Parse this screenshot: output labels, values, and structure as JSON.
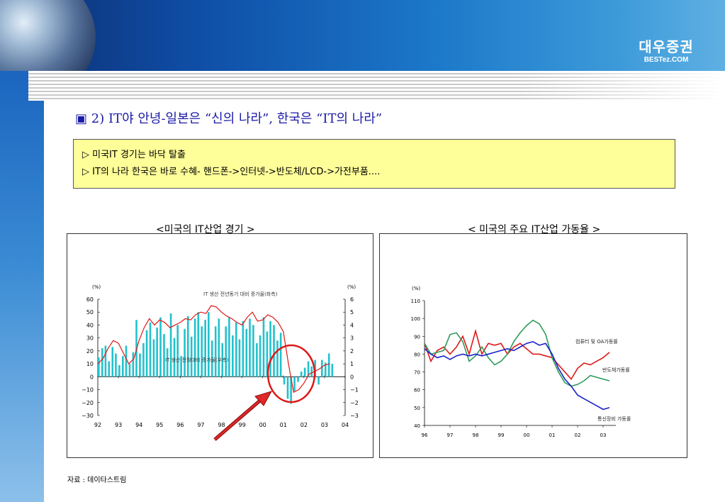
{
  "logo": {
    "korean": "대우증권",
    "english": "BESTez.COM"
  },
  "headline": {
    "marker": "▣",
    "text": "2) IT야 안녕-일본은 “신의 나라”, 한국은 “IT의 나라”"
  },
  "notes": [
    "▷ 미국IT 경기는 바닥 탈출",
    "▷ IT의 나라 한국은 바로 수혜- 핸드폰->인터넷->반도체/LCD->가전부품...."
  ],
  "source": "자료 : 데이타스트림",
  "colors": {
    "bar": "#22c1cc",
    "red": "#e01818",
    "green": "#2e9a5a",
    "blue": "#1a22c8",
    "title": "#1a1aa6",
    "note_bg": "#ffff99"
  },
  "chart_data": [
    {
      "type": "bar",
      "title": "<미국의 IT산업 경기 >",
      "left_unit": "(%)",
      "right_unit": "(%)",
      "ylim_left": [
        -30,
        60
      ],
      "ylim_right": [
        -3,
        6
      ],
      "yticks_left": [
        -30,
        -20,
        -10,
        0,
        10,
        20,
        30,
        40,
        50,
        60
      ],
      "yticks_right": [
        -3,
        -2,
        -1,
        0,
        1,
        2,
        3,
        4,
        5,
        6
      ],
      "x_tick_labels": [
        "92",
        "93",
        "94",
        "95",
        "96",
        "97",
        "98",
        "99",
        "00",
        "01",
        "02",
        "03",
        "04"
      ],
      "annotations": [
        "IT 생산 전년동기 대비 증가율(좌측)",
        "IT 생산 전월대비 증가율(우측)"
      ],
      "series": [
        {
          "kind": "line",
          "axis": "left",
          "x": [
            1992.0,
            1992.25,
            1992.5,
            1992.75,
            1993.0,
            1993.25,
            1993.5,
            1993.75,
            1994.0,
            1994.25,
            1994.5,
            1994.75,
            1995.0,
            1995.25,
            1995.5,
            1995.75,
            1996.0,
            1996.25,
            1996.5,
            1996.75,
            1997.0,
            1997.25,
            1997.5,
            1997.75,
            1998.0,
            1998.25,
            1998.5,
            1998.75,
            1999.0,
            1999.25,
            1999.5,
            1999.75,
            2000.0,
            2000.25,
            2000.5,
            2000.75,
            2001.0,
            2001.25,
            2001.5,
            2001.75,
            2002.0,
            2002.25,
            2002.5,
            2002.75,
            2003.0,
            2003.25
          ],
          "values": [
            10,
            14,
            22,
            28,
            26,
            18,
            10,
            14,
            28,
            38,
            45,
            40,
            44,
            42,
            38,
            40,
            42,
            45,
            44,
            48,
            50,
            49,
            55,
            54,
            50,
            47,
            45,
            42,
            40,
            46,
            50,
            43,
            44,
            48,
            46,
            42,
            35,
            10,
            -12,
            -10,
            -5,
            2,
            4,
            6,
            9,
            10
          ]
        },
        {
          "kind": "bar",
          "axis": "right",
          "x": [
            1992.0,
            1992.17,
            1992.33,
            1992.5,
            1992.67,
            1992.83,
            1993.0,
            1993.17,
            1993.33,
            1993.5,
            1993.67,
            1993.83,
            1994.0,
            1994.17,
            1994.33,
            1994.5,
            1994.67,
            1994.83,
            1995.0,
            1995.17,
            1995.33,
            1995.5,
            1995.67,
            1995.83,
            1996.0,
            1996.17,
            1996.33,
            1996.5,
            1996.67,
            1996.83,
            1997.0,
            1997.17,
            1997.33,
            1997.5,
            1997.67,
            1997.83,
            1998.0,
            1998.17,
            1998.33,
            1998.5,
            1998.67,
            1998.83,
            1999.0,
            1999.17,
            1999.33,
            1999.5,
            1999.67,
            1999.83,
            2000.0,
            2000.17,
            2000.33,
            2000.5,
            2000.67,
            2000.83,
            2001.0,
            2001.17,
            2001.33,
            2001.5,
            2001.67,
            2001.83,
            2002.0,
            2002.17,
            2002.33,
            2002.5,
            2002.67,
            2002.83,
            2003.0,
            2003.17,
            2003.33
          ],
          "values": [
            1.5,
            2.2,
            2.4,
            1.2,
            2.3,
            1.8,
            0.9,
            1.6,
            2.4,
            1.0,
            1.9,
            4.4,
            1.8,
            2.6,
            3.6,
            4.2,
            2.9,
            3.8,
            4.6,
            3.3,
            2.2,
            4.9,
            3.0,
            4.0,
            1.6,
            3.7,
            4.7,
            3.1,
            4.5,
            5.0,
            3.9,
            4.4,
            5.0,
            2.8,
            3.9,
            4.5,
            2.6,
            3.9,
            4.6,
            3.2,
            4.2,
            2.9,
            4.3,
            3.7,
            4.5,
            4.0,
            2.6,
            3.2,
            4.6,
            3.5,
            4.3,
            4.0,
            2.8,
            3.4,
            -0.6,
            -1.7,
            -2.1,
            -1.1,
            -0.4,
            0.4,
            0.7,
            1.2,
            0.8,
            1.3,
            -0.6,
            1.3,
            1.1,
            1.8,
            1.0
          ]
        }
      ]
    },
    {
      "type": "line",
      "title": "< 미국의 주요 IT산업 가동율 >",
      "y_unit": "(%)",
      "ylim": [
        40,
        110
      ],
      "yticks": [
        40,
        50,
        60,
        70,
        80,
        90,
        100,
        110
      ],
      "x_tick_labels": [
        "96",
        "97",
        "98",
        "99",
        "00",
        "01",
        "02",
        "03"
      ],
      "series": [
        {
          "name": "컴퓨터 및 OA가동률",
          "x": [
            1996.0,
            1996.25,
            1996.5,
            1996.75,
            1997.0,
            1997.25,
            1997.5,
            1997.75,
            1998.0,
            1998.25,
            1998.5,
            1998.75,
            1999.0,
            1999.25,
            1999.5,
            1999.75,
            2000.0,
            2000.25,
            2000.5,
            2000.75,
            2001.0,
            2001.25,
            2001.5,
            2001.75,
            2002.0,
            2002.25,
            2002.5,
            2002.75,
            2003.0,
            2003.25
          ],
          "values": [
            86,
            76,
            82,
            84,
            80,
            84,
            90,
            80,
            93,
            80,
            86,
            85,
            86,
            80,
            84,
            86,
            83,
            80,
            80,
            79,
            78,
            74,
            70,
            66,
            72,
            75,
            74,
            76,
            78,
            81
          ]
        },
        {
          "name": "반도체가동률",
          "x": [
            1996.0,
            1996.25,
            1996.5,
            1996.75,
            1997.0,
            1997.25,
            1997.5,
            1997.75,
            1998.0,
            1998.25,
            1998.5,
            1998.75,
            1999.0,
            1999.25,
            1999.5,
            1999.75,
            2000.0,
            2000.25,
            2000.5,
            2000.75,
            2001.0,
            2001.25,
            2001.5,
            2001.75,
            2002.0,
            2002.25,
            2002.5,
            2002.75,
            2003.0,
            2003.25
          ],
          "values": [
            86,
            80,
            81,
            82,
            91,
            92,
            87,
            76,
            79,
            84,
            78,
            74,
            76,
            80,
            87,
            92,
            96,
            99,
            97,
            91,
            78,
            70,
            64,
            62,
            63,
            65,
            68,
            67,
            66,
            65
          ]
        },
        {
          "name": "통신장비 가동률",
          "x": [
            1996.0,
            1996.25,
            1996.5,
            1996.75,
            1997.0,
            1997.25,
            1997.5,
            1997.75,
            1998.0,
            1998.25,
            1998.5,
            1998.75,
            1999.0,
            1999.25,
            1999.5,
            1999.75,
            2000.0,
            2000.25,
            2000.5,
            2000.75,
            2001.0,
            2001.25,
            2001.5,
            2001.75,
            2002.0,
            2002.25,
            2002.5,
            2002.75,
            2003.0,
            2003.25
          ],
          "values": [
            83,
            80,
            78,
            79,
            77,
            79,
            80,
            79,
            80,
            79,
            80,
            81,
            82,
            83,
            82,
            84,
            86,
            87,
            85,
            86,
            80,
            72,
            66,
            62,
            57,
            55,
            53,
            51,
            49,
            50
          ]
        }
      ]
    }
  ]
}
